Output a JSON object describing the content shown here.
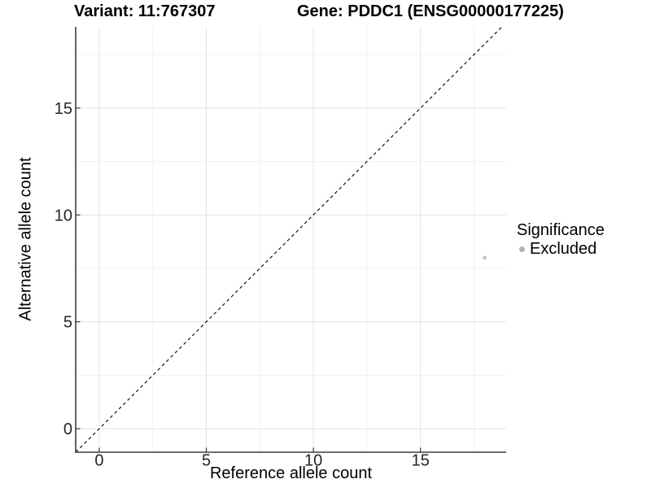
{
  "chart_data": {
    "type": "scatter",
    "title_parts": [
      "Variant: 11:767307",
      "Gene: PDDC1 (ENSG00000177225)"
    ],
    "xlabel": "Reference allele count",
    "ylabel": "Alternative allele count",
    "xlim": [
      -1.1,
      19.0
    ],
    "ylim": [
      -1.1,
      18.8
    ],
    "x_ticks": [
      0,
      5,
      10,
      15
    ],
    "y_ticks": [
      0,
      5,
      10,
      15
    ],
    "x_minor_ticks": [
      2.5,
      7.5,
      12.5,
      17.5
    ],
    "y_minor_ticks": [
      2.5,
      7.5,
      12.5,
      17.5
    ],
    "grid": "major+minor",
    "series": [
      {
        "name": "Excluded",
        "color": "#c2c2c2",
        "marker_radius": 2.3,
        "points": [
          [
            18,
            8
          ]
        ]
      }
    ],
    "identity_line": {
      "style": "dashed",
      "color": "#000000",
      "from": -1.1,
      "to": 18.8
    },
    "legend": {
      "title": "Significance",
      "position": "right",
      "items": [
        {
          "label": "Excluded",
          "color": "#b3b3b3"
        }
      ]
    },
    "colors": {
      "grid_major": "#e3e3e3",
      "grid_minor": "#f0f0f0",
      "axis_line": "#3d3d3d",
      "tick_mark": "#333333",
      "tick_label": "#262626",
      "background": "#ffffff"
    }
  }
}
